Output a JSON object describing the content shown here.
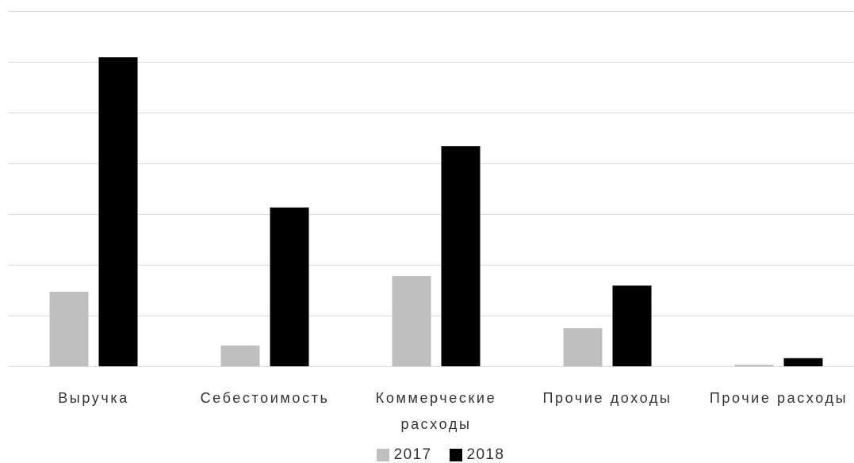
{
  "chart_data": {
    "type": "bar",
    "title": "",
    "xlabel": "",
    "ylabel": "",
    "categories": [
      "Выручка",
      "Себестоимость",
      "Коммерческие расходы",
      "Прочие доходы",
      "Прочие расходы"
    ],
    "series": [
      {
        "name": "2017",
        "color": "#bfbfbf",
        "values": [
          1.47,
          0.41,
          1.78,
          0.75,
          0.03
        ]
      },
      {
        "name": "2018",
        "color": "#000000",
        "values": [
          6.09,
          3.13,
          4.34,
          1.59,
          0.16
        ]
      }
    ],
    "ylim": [
      0,
      7
    ],
    "grid": true,
    "gridline_color": "#d9d9d9",
    "legend": "bottom"
  }
}
